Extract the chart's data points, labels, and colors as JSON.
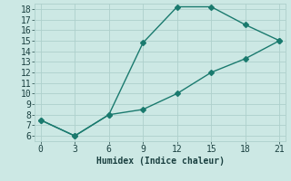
{
  "line1_x": [
    0,
    3,
    6,
    9,
    12,
    15,
    18,
    21
  ],
  "line1_y": [
    7.5,
    6.0,
    8.0,
    14.8,
    18.2,
    18.2,
    16.5,
    15.0
  ],
  "line2_x": [
    0,
    3,
    6,
    9,
    12,
    15,
    18,
    21
  ],
  "line2_y": [
    7.5,
    6.0,
    8.0,
    8.5,
    10.0,
    12.0,
    13.3,
    15.0
  ],
  "line_color": "#1a7a6e",
  "bg_color": "#cce8e4",
  "grid_color": "#aed0cc",
  "xlabel": "Humidex (Indice chaleur)",
  "xlim": [
    -0.5,
    21.5
  ],
  "ylim": [
    5.5,
    18.5
  ],
  "xticks": [
    0,
    3,
    6,
    9,
    12,
    15,
    18,
    21
  ],
  "yticks": [
    6,
    7,
    8,
    9,
    10,
    11,
    12,
    13,
    14,
    15,
    16,
    17,
    18
  ],
  "font_color": "#1a4040",
  "marker": "D",
  "markersize": 3,
  "linewidth": 1.0,
  "fontsize": 7
}
